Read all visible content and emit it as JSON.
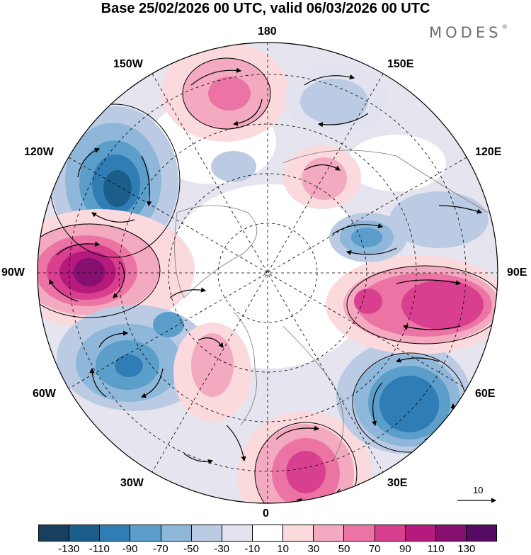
{
  "title": "Base 25/02/2026 00 UTC, valid 06/03/2026 00 UTC",
  "logo": "MODES",
  "logo_mark": "®",
  "longitude_labels": {
    "lon_180": "180",
    "lon_150e": "150E",
    "lon_120e": "120E",
    "lon_90e": "90E",
    "lon_60e": "60E",
    "lon_30e": "30E",
    "lon_0": "0",
    "lon_30w": "30W",
    "lon_60w": "60W",
    "lon_90w": "90W",
    "lon_120w": "120W",
    "lon_150w": "150W"
  },
  "reference_vector": "10",
  "colorbar": {
    "colors": [
      "#17405e",
      "#1c5e8a",
      "#2f7db4",
      "#5b9ec9",
      "#8fb7da",
      "#bccbe4",
      "#e2e3ef",
      "#ffffff",
      "#fadadd",
      "#f3aac0",
      "#eb74a4",
      "#d8408f",
      "#b51a7c",
      "#86106f",
      "#570c63"
    ],
    "ticks": [
      "-130",
      "-110",
      "-90",
      "-70",
      "-50",
      "-30",
      "-10",
      "10",
      "30",
      "50",
      "70",
      "90",
      "110",
      "130"
    ]
  }
}
